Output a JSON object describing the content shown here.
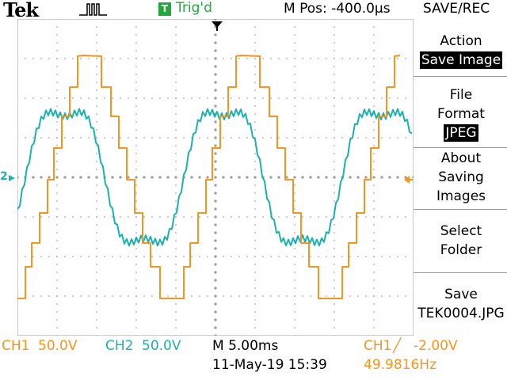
{
  "header": {
    "brand": "Tek",
    "trigger_badge": "T",
    "trigger_status": "Trig'd",
    "m_pos": "M Pos: -400.0µs"
  },
  "menu": {
    "title": "SAVE/REC",
    "action_label": "Action",
    "action_value": "Save Image",
    "file_format_label_1": "File",
    "file_format_label_2": "Format",
    "file_format_value": "JPEG",
    "about_1": "About",
    "about_2": "Saving",
    "about_3": "Images",
    "select_1": "Select",
    "select_2": "Folder",
    "save_1": "Save",
    "save_2": "TEK0004.JPG"
  },
  "status": {
    "ch1_label": "CH1",
    "ch1_scale": "50.0V",
    "ch2_label": "CH2",
    "ch2_scale": "50.0V",
    "timebase": "M 5.00ms",
    "datetime": "11-May-19 15:39",
    "trigger_source": "CH1",
    "trigger_slope": "╱",
    "trigger_level": "-2.00V",
    "frequency": "49.9816Hz"
  },
  "markers": {
    "ch2_ground": "2"
  },
  "colors": {
    "ch1": "#f7941d",
    "ch2": "#1bb0b2",
    "trigger_green": "#1faa3a",
    "grid": "#9a9a9a"
  },
  "icons": {
    "acquisition": "pulse-waveform-icon",
    "trigger_position": "down-arrow-icon",
    "trigger_level": "left-arrow-icon",
    "ch2_ground": "ch2-ground-marker-icon"
  }
}
